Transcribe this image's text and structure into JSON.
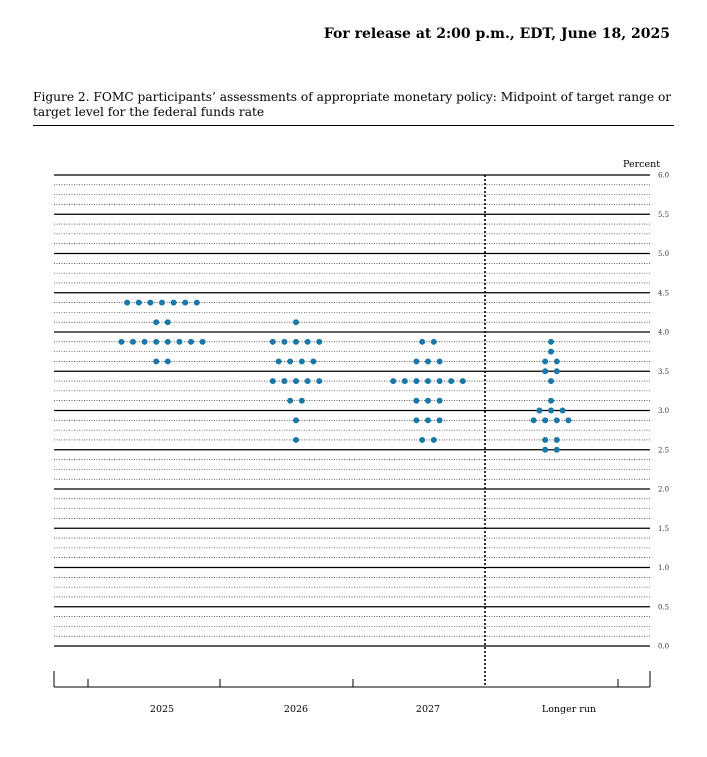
{
  "release_line": "For release at 2:00 p.m., EDT, June 18, 2025",
  "figure_caption": "Figure 2.  FOMC participants’ assessments of appropriate monetary policy: Midpoint of target range or target level for the federal funds rate",
  "colors": {
    "dot": "#1a78a8",
    "grid": "#000000",
    "text": "#000000"
  },
  "chart_data": {
    "type": "scatter",
    "title": "",
    "ylabel": "Percent",
    "xlabel": "",
    "ylim": [
      0,
      6
    ],
    "yticks": [
      0,
      0.5,
      1,
      1.5,
      2,
      2.5,
      3,
      3.5,
      4,
      4.5,
      5,
      5.5,
      6
    ],
    "ytick_labels": [
      "0.0",
      "0.5",
      "1.0",
      "1.5",
      "2.0",
      "2.5",
      "3.0",
      "3.5",
      "4.0",
      "4.5",
      "5.0",
      "5.5",
      "6.0"
    ],
    "grid": true,
    "categories": [
      "2025",
      "2026",
      "2027",
      "Longer run"
    ],
    "dot_counts": [
      {
        "category": "2025",
        "points": [
          [
            4.375,
            7
          ],
          [
            4.125,
            2
          ],
          [
            3.875,
            8
          ],
          [
            3.625,
            2
          ]
        ]
      },
      {
        "category": "2026",
        "points": [
          [
            4.125,
            1
          ],
          [
            3.875,
            5
          ],
          [
            3.625,
            4
          ],
          [
            3.375,
            5
          ],
          [
            3.125,
            2
          ],
          [
            2.875,
            1
          ],
          [
            2.625,
            1
          ]
        ]
      },
      {
        "category": "2027",
        "points": [
          [
            3.875,
            2
          ],
          [
            3.625,
            3
          ],
          [
            3.375,
            7
          ],
          [
            3.125,
            3
          ],
          [
            2.875,
            3
          ],
          [
            2.625,
            2
          ]
        ]
      },
      {
        "category": "Longer run",
        "points": [
          [
            3.875,
            1
          ],
          [
            3.75,
            1
          ],
          [
            3.625,
            2
          ],
          [
            3.5,
            2
          ],
          [
            3.375,
            1
          ],
          [
            3.125,
            1
          ],
          [
            3.0,
            3
          ],
          [
            2.875,
            4
          ],
          [
            2.625,
            2
          ],
          [
            2.5,
            2
          ]
        ]
      }
    ]
  }
}
